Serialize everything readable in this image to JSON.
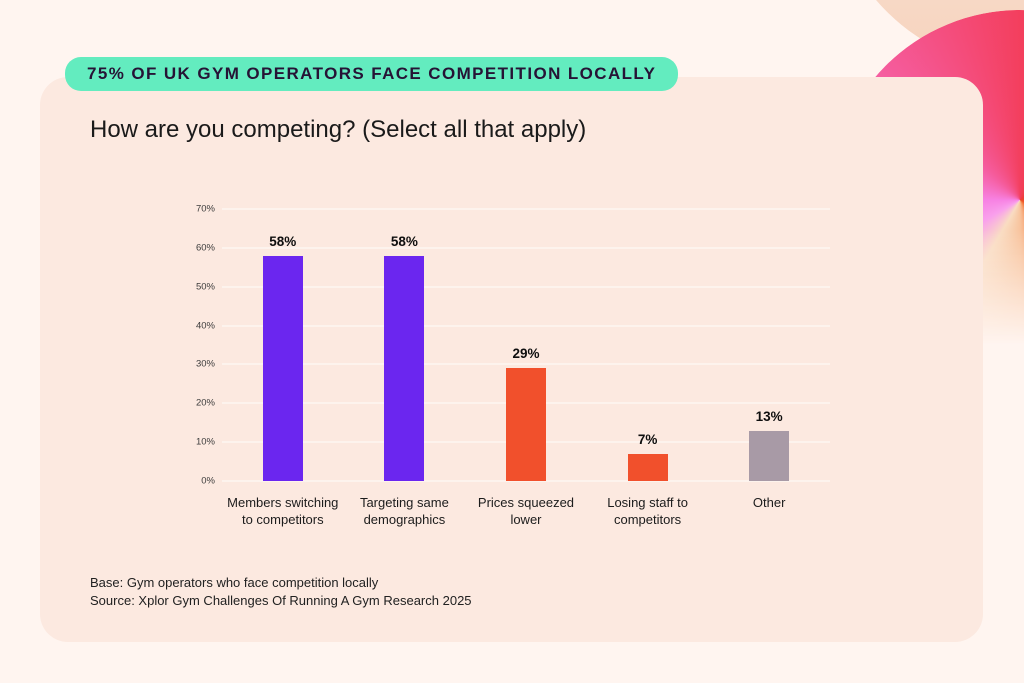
{
  "header": {
    "badge_label": "75% OF UK GYM OPERATORS FACE COMPETITION LOCALLY",
    "badge_bg": "#63ECBF",
    "badge_text_color": "#261335"
  },
  "title": "How are you competing? (Select all that apply)",
  "chart_data": {
    "type": "bar",
    "title": "How are you competing? (Select all that apply)",
    "categories": [
      "Members switching to competitors",
      "Targeting same demographics",
      "Prices squeezed lower",
      "Losing staff to competitors",
      "Other"
    ],
    "values": [
      58,
      58,
      29,
      7,
      13
    ],
    "value_label_suffix": "%",
    "bar_colors": [
      "#6B26EF",
      "#6B26EF",
      "#F1502C",
      "#F1502C",
      "#A89AA6"
    ],
    "ylim": [
      0,
      70
    ],
    "yticks": [
      70,
      60,
      50,
      40,
      30,
      20,
      10,
      0
    ],
    "ytick_suffix": "%",
    "grid": true,
    "legend": "none",
    "xlabel": "",
    "ylabel": ""
  },
  "footnotes": {
    "base": "Base: Gym operators who face competition locally",
    "source": "Source: Xplor Gym Challenges Of Running A Gym Research 2025"
  },
  "colors": {
    "page_background": "#FFF5F0",
    "card_background": "#FCE9E0",
    "gridline": "#FDF3ED",
    "purple_bar": "#6B26EF",
    "orange_bar": "#F1502C",
    "gray_bar": "#A89AA6",
    "decor_pink": "#F782E3",
    "decor_red": "#F33F5E",
    "decor_orange": "#EE5A28",
    "decor_pale_peach": "#F6D2BC"
  }
}
